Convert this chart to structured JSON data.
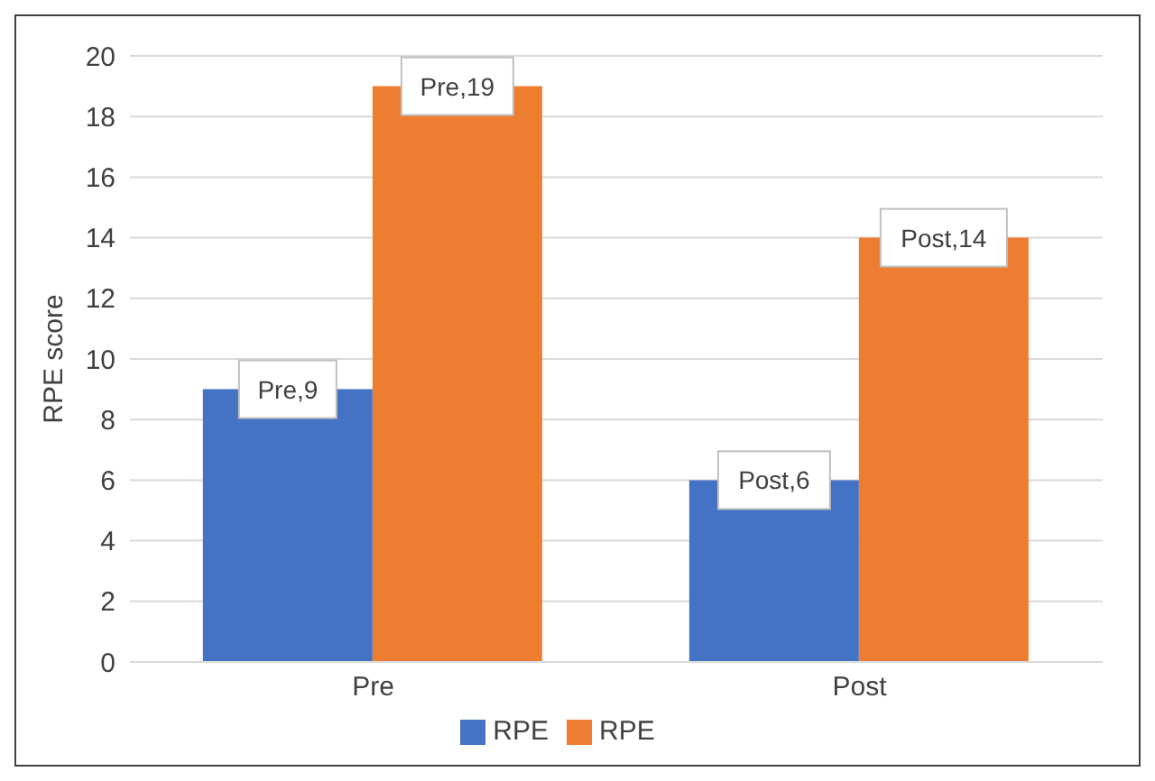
{
  "chart_data": {
    "type": "bar",
    "ylabel": "RPE score",
    "categories": [
      "Pre",
      "Post"
    ],
    "series": [
      {
        "name": "RPE",
        "color": "#4472c4",
        "values": [
          9,
          6
        ],
        "value_labels": [
          "Pre,9",
          "Post,6"
        ]
      },
      {
        "name": "RPE",
        "color": "#ed7d31",
        "values": [
          19,
          14
        ],
        "value_labels": [
          "Pre,19",
          "Post,14"
        ]
      }
    ],
    "ylim": [
      0,
      20
    ],
    "yticks": [
      0,
      2,
      4,
      6,
      8,
      10,
      12,
      14,
      16,
      18,
      20
    ],
    "grid": "y",
    "legend": "bottom"
  }
}
